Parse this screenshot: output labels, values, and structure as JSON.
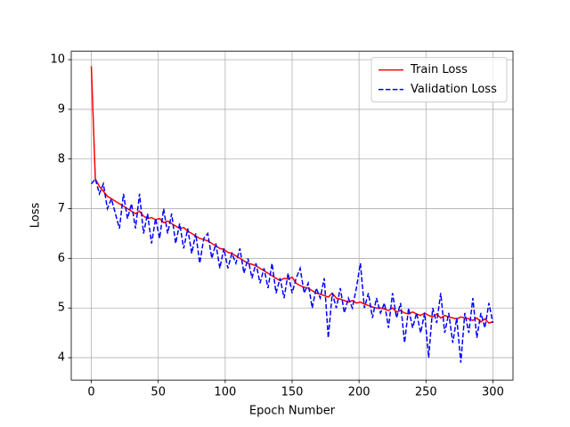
{
  "chart_data": {
    "type": "line",
    "xlabel": "Epoch Number",
    "ylabel": "Loss",
    "x": [
      0,
      3,
      6,
      9,
      12,
      15,
      18,
      21,
      24,
      27,
      30,
      33,
      36,
      39,
      42,
      45,
      48,
      51,
      54,
      57,
      60,
      63,
      66,
      69,
      72,
      75,
      78,
      81,
      84,
      87,
      90,
      93,
      96,
      99,
      102,
      105,
      108,
      111,
      114,
      117,
      120,
      123,
      126,
      129,
      132,
      135,
      138,
      141,
      144,
      147,
      150,
      153,
      156,
      159,
      162,
      165,
      168,
      171,
      174,
      177,
      180,
      183,
      186,
      189,
      192,
      195,
      198,
      201,
      204,
      207,
      210,
      213,
      216,
      219,
      222,
      225,
      228,
      231,
      234,
      237,
      240,
      243,
      246,
      249,
      252,
      255,
      258,
      261,
      264,
      267,
      270,
      273,
      276,
      279,
      282,
      285,
      288,
      291,
      294,
      297,
      300
    ],
    "series": [
      {
        "name": "Train Loss",
        "color": "red",
        "style": "solid",
        "values": [
          9.87,
          7.6,
          7.45,
          7.35,
          7.25,
          7.2,
          7.15,
          7.1,
          7.05,
          7.0,
          6.95,
          6.9,
          6.95,
          6.85,
          6.8,
          6.82,
          6.78,
          6.8,
          6.72,
          6.75,
          6.7,
          6.65,
          6.6,
          6.62,
          6.55,
          6.5,
          6.45,
          6.4,
          6.38,
          6.35,
          6.3,
          6.25,
          6.2,
          6.18,
          6.12,
          6.1,
          6.05,
          6.0,
          5.95,
          5.9,
          5.88,
          5.85,
          5.8,
          5.75,
          5.7,
          5.65,
          5.6,
          5.55,
          5.6,
          5.58,
          5.62,
          5.5,
          5.45,
          5.42,
          5.4,
          5.35,
          5.3,
          5.28,
          5.25,
          5.22,
          5.3,
          5.2,
          5.18,
          5.15,
          5.12,
          5.15,
          5.1,
          5.12,
          5.08,
          5.05,
          5.02,
          5.0,
          5.0,
          4.98,
          4.95,
          5.0,
          4.92,
          4.95,
          4.9,
          4.88,
          4.92,
          4.88,
          4.85,
          4.9,
          4.85,
          4.82,
          4.88,
          4.8,
          4.85,
          4.82,
          4.8,
          4.78,
          4.82,
          4.8,
          4.78,
          4.75,
          4.8,
          4.72,
          4.78,
          4.7,
          4.72
        ]
      },
      {
        "name": "Validation Loss",
        "color": "blue",
        "style": "dashed",
        "values": [
          7.5,
          7.6,
          7.3,
          7.5,
          7.0,
          7.2,
          6.9,
          6.6,
          7.3,
          6.8,
          7.1,
          6.6,
          7.3,
          6.5,
          6.9,
          6.3,
          6.8,
          6.4,
          7.0,
          6.5,
          6.9,
          6.3,
          6.7,
          6.2,
          6.6,
          6.1,
          6.5,
          5.9,
          6.4,
          6.5,
          6.0,
          6.3,
          5.8,
          6.2,
          5.8,
          6.1,
          5.9,
          6.2,
          5.7,
          6.0,
          5.6,
          5.9,
          5.5,
          5.8,
          5.4,
          5.9,
          5.3,
          5.6,
          5.2,
          5.7,
          5.3,
          5.6,
          5.8,
          5.3,
          5.5,
          5.0,
          5.4,
          5.2,
          5.6,
          4.4,
          5.3,
          5.0,
          5.4,
          4.9,
          5.2,
          5.0,
          5.4,
          5.9,
          5.0,
          5.3,
          4.8,
          5.2,
          4.9,
          5.1,
          4.6,
          5.3,
          4.8,
          5.1,
          4.3,
          5.0,
          4.6,
          4.9,
          4.5,
          4.9,
          4.0,
          5.0,
          4.7,
          5.3,
          4.5,
          4.9,
          4.3,
          4.8,
          3.9,
          4.9,
          4.5,
          5.2,
          4.4,
          4.9,
          4.6,
          5.1,
          4.7
        ]
      }
    ],
    "xlim": [
      -15,
      315
    ],
    "ylim": [
      3.55,
      10.17
    ],
    "xticks": [
      0,
      50,
      100,
      150,
      200,
      250,
      300
    ],
    "yticks": [
      4,
      5,
      6,
      7,
      8,
      9,
      10
    ],
    "grid": true,
    "legend": "upper right"
  }
}
